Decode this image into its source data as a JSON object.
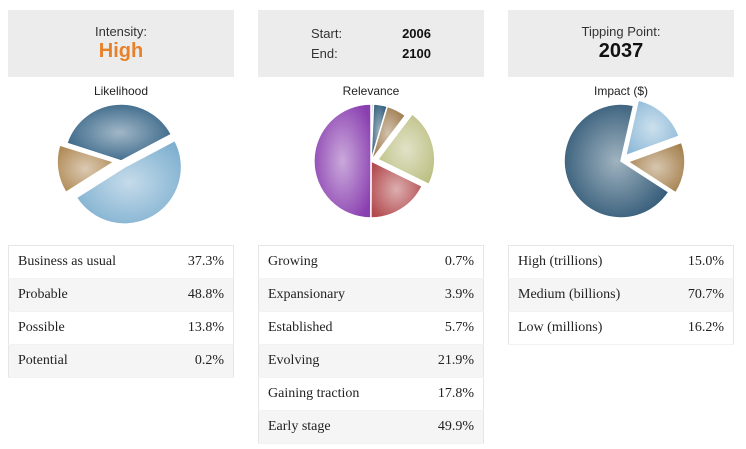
{
  "intensity": {
    "label": "Intensity:",
    "value": "High"
  },
  "timeline": {
    "start_label": "Start:",
    "start_value": "2006",
    "end_label": "End:",
    "end_value": "2100"
  },
  "tipping": {
    "label": "Tipping Point:",
    "value": "2037"
  },
  "charts": {
    "likelihood": {
      "title": "Likelihood"
    },
    "relevance": {
      "title": "Relevance"
    },
    "impact": {
      "title": "Impact ($)"
    }
  },
  "tables": {
    "likelihood": [
      {
        "label": "Business as usual",
        "value": "37.3%"
      },
      {
        "label": "Probable",
        "value": "48.8%"
      },
      {
        "label": "Possible",
        "value": "13.8%"
      },
      {
        "label": "Potential",
        "value": "0.2%"
      }
    ],
    "relevance": [
      {
        "label": "Growing",
        "value": "0.7%"
      },
      {
        "label": "Expansionary",
        "value": "3.9%"
      },
      {
        "label": "Established",
        "value": "5.7%"
      },
      {
        "label": "Evolving",
        "value": "21.9%"
      },
      {
        "label": "Gaining traction",
        "value": "17.8%"
      },
      {
        "label": "Early stage",
        "value": "49.9%"
      }
    ],
    "impact": [
      {
        "label": "High (trillions)",
        "value": "15.0%"
      },
      {
        "label": "Medium (billions)",
        "value": "70.7%"
      },
      {
        "label": "Low (millions)",
        "value": "16.2%"
      }
    ]
  },
  "chart_data": [
    {
      "type": "pie",
      "title": "Likelihood",
      "categories": [
        "Business as usual",
        "Probable",
        "Possible",
        "Potential"
      ],
      "values": [
        37.3,
        48.8,
        13.8,
        0.2
      ],
      "colors": [
        "#2f5f82",
        "#7fb0d0",
        "#b08a55",
        "#b5b5b5"
      ],
      "exploded": [
        "Probable",
        "Possible"
      ]
    },
    {
      "type": "pie",
      "title": "Relevance",
      "categories": [
        "Growing",
        "Expansionary",
        "Established",
        "Evolving",
        "Gaining traction",
        "Early stage"
      ],
      "values": [
        0.7,
        3.9,
        5.7,
        21.9,
        17.8,
        49.9
      ],
      "colors": [
        "#bfbfbf",
        "#2d5a78",
        "#9b7748",
        "#bcbf82",
        "#b24a4e",
        "#8a3fb0"
      ],
      "exploded": [
        "Evolving"
      ]
    },
    {
      "type": "pie",
      "title": "Impact ($)",
      "categories": [
        "High (trillions)",
        "Medium (billions)",
        "Low (millions)"
      ],
      "values": [
        15.0,
        70.7,
        16.2
      ],
      "colors": [
        "#a5804d",
        "#2c5573",
        "#8db9d8"
      ],
      "exploded": [
        "High (trillions)",
        "Low (millions)"
      ]
    }
  ]
}
